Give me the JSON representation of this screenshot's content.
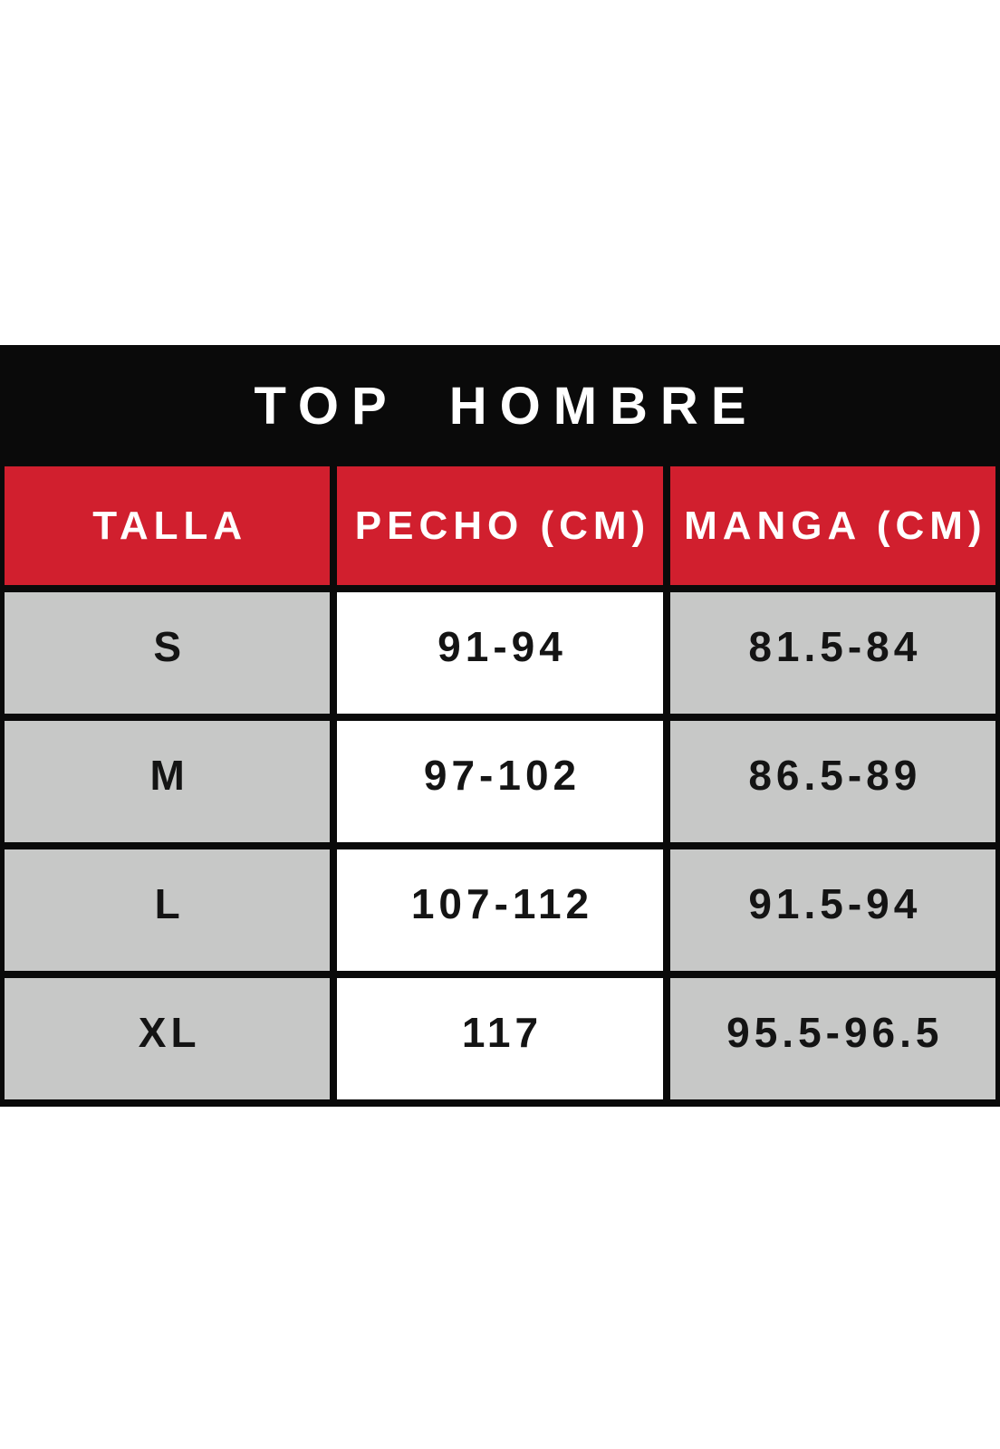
{
  "title": "TOP HOMBRE",
  "colors": {
    "title_bar_bg": "#0a0a0a",
    "header_bg": "#d11f2e",
    "header_text": "#ffffff",
    "row_gray_bg": "#c7c8c7",
    "row_white_bg": "#ffffff",
    "data_text": "#141414",
    "border": "#0a0a0a",
    "page_bg": "#ffffff"
  },
  "chart_data": {
    "type": "table",
    "title": "TOP HOMBRE",
    "columns": [
      "TALLA",
      "PECHO (CM)",
      "MANGA (CM)"
    ],
    "rows": [
      [
        "S",
        "91-94",
        "81.5-84"
      ],
      [
        "M",
        "97-102",
        "86.5-89"
      ],
      [
        "L",
        "107-112",
        "91.5-94"
      ],
      [
        "XL",
        "117",
        "95.5-96.5"
      ]
    ]
  }
}
